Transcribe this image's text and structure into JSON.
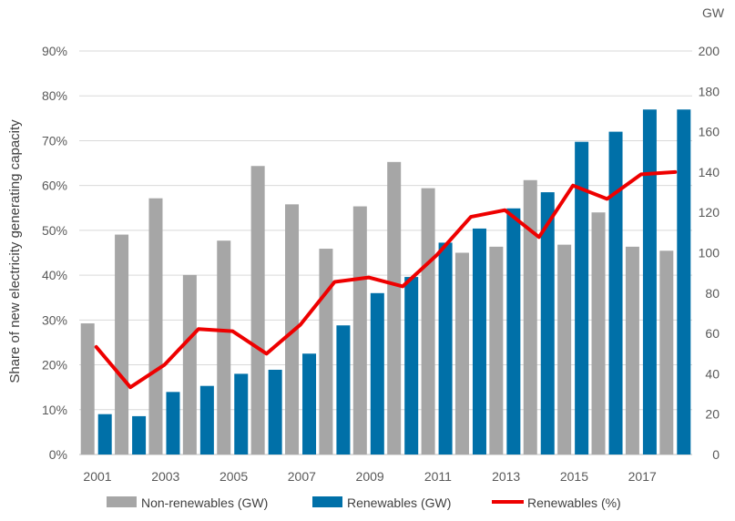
{
  "chart_data": {
    "type": "bar",
    "title": "",
    "ylabel": "Share of new electricity generating capacity",
    "y2_unit": "GW",
    "years": [
      "2001",
      "2002",
      "2003",
      "2004",
      "2005",
      "2006",
      "2007",
      "2008",
      "2009",
      "2010",
      "2011",
      "2012",
      "2013",
      "2014",
      "2015",
      "2016",
      "2017",
      "2018"
    ],
    "x_tick_labels": [
      "2001",
      "2003",
      "2005",
      "2007",
      "2009",
      "2011",
      "2013",
      "2015",
      "2017"
    ],
    "y_left_ticks": [
      "0%",
      "10%",
      "20%",
      "30%",
      "40%",
      "50%",
      "60%",
      "70%",
      "80%",
      "90%"
    ],
    "y_left_range": [
      0,
      90
    ],
    "y_right_ticks": [
      "0",
      "20",
      "40",
      "60",
      "80",
      "100",
      "120",
      "140",
      "160",
      "180",
      "200"
    ],
    "y_right_range": [
      0,
      200
    ],
    "gridlines": true,
    "series": [
      {
        "name": "Non-renewables (GW)",
        "axis": "right",
        "kind": "bar",
        "color": "#a6a6a6",
        "values": [
          65,
          109,
          127,
          89,
          106,
          143,
          124,
          102,
          123,
          145,
          132,
          100,
          103,
          136,
          104,
          120,
          103,
          101
        ]
      },
      {
        "name": "Renewables (GW)",
        "axis": "right",
        "kind": "bar",
        "color": "#0070a8",
        "values": [
          20,
          19,
          31,
          34,
          40,
          42,
          50,
          64,
          80,
          88,
          105,
          112,
          122,
          130,
          155,
          160,
          171,
          171
        ]
      },
      {
        "name": "Renewables (%)",
        "axis": "left",
        "kind": "line",
        "color": "#ee0000",
        "values": [
          24,
          15,
          20,
          28,
          27.5,
          22.5,
          29,
          38.5,
          39.5,
          37.5,
          44.5,
          53,
          54.5,
          48.5,
          60,
          57,
          62.5,
          63
        ]
      }
    ],
    "legend_position": "bottom"
  }
}
